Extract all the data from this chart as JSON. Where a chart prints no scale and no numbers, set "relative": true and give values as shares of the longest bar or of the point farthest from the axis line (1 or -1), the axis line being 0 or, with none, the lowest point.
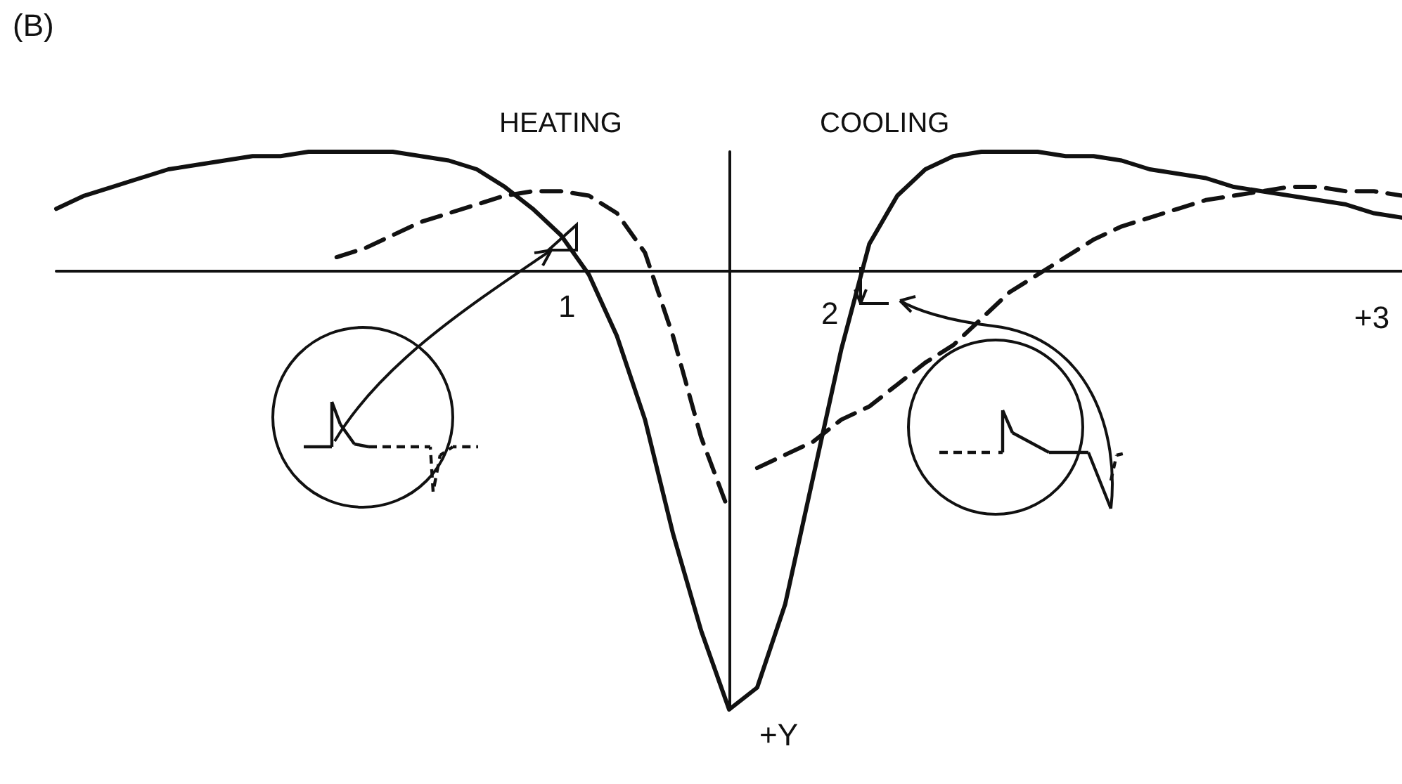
{
  "chart_data": {
    "type": "line",
    "title": "(B)",
    "relative": true,
    "grid": false,
    "marker": "none",
    "tick_labels": false,
    "annotations": [
      "HEATING",
      "COOLING",
      "1",
      "2",
      "+3",
      "+Y"
    ],
    "categories": [
      null,
      null,
      null,
      null,
      null,
      null,
      null,
      null,
      null,
      null,
      null,
      null,
      null,
      null,
      null,
      null,
      null,
      null,
      null,
      null,
      null,
      null,
      null,
      null,
      null,
      null,
      null,
      null,
      null,
      null,
      null,
      null,
      null,
      null,
      null,
      null,
      null,
      null,
      null,
      null,
      null,
      null,
      null,
      null,
      null,
      null,
      null,
      null,
      null
    ],
    "series": [
      {
        "color": "#111111",
        "line_style": "solid",
        "values": [
          0.14,
          0.17,
          0.19,
          0.21,
          0.23,
          0.24,
          0.25,
          0.26,
          0.26,
          0.27,
          0.27,
          0.27,
          0.27,
          0.26,
          0.25,
          0.23,
          0.19,
          0.14,
          0.08,
          -0.01,
          -0.15,
          -0.34,
          -0.6,
          -0.82,
          -1,
          -0.95,
          -0.76,
          -0.47,
          -0.18,
          0.06,
          0.17,
          0.23,
          0.26,
          0.27,
          0.27,
          0.27,
          0.26,
          0.26,
          0.25,
          0.23,
          0.22,
          0.21,
          0.19,
          0.18,
          0.17,
          0.16,
          0.15,
          0.13,
          0.12
        ]
      },
      {
        "color": "#111111",
        "line_style": "dashed",
        "values": [
          null,
          null,
          null,
          null,
          null,
          null,
          null,
          null,
          null,
          null,
          0.03,
          0.05,
          0.08,
          0.11,
          0.13,
          0.15,
          0.17,
          0.18,
          0.18,
          0.17,
          0.13,
          0.04,
          -0.15,
          -0.38,
          -0.55,
          null,
          null,
          null,
          null,
          null,
          null,
          null,
          null,
          null,
          null,
          null,
          null,
          null,
          null,
          null,
          null,
          null,
          null,
          null,
          null,
          null,
          null,
          null,
          null
        ]
      },
      {
        "color": "#111111",
        "line_style": "dashed",
        "values": [
          null,
          null,
          null,
          null,
          null,
          null,
          null,
          null,
          null,
          null,
          null,
          null,
          null,
          null,
          null,
          null,
          null,
          null,
          null,
          null,
          null,
          null,
          null,
          null,
          null,
          -0.45,
          -0.42,
          -0.39,
          -0.34,
          -0.31,
          -0.26,
          -0.21,
          -0.17,
          -0.11,
          -0.05,
          -0.01,
          0.03,
          0.07,
          0.1,
          0.12,
          0.14,
          0.16,
          0.17,
          0.18,
          0.19,
          0.19,
          0.18,
          0.18,
          0.17
        ]
      }
    ]
  }
}
